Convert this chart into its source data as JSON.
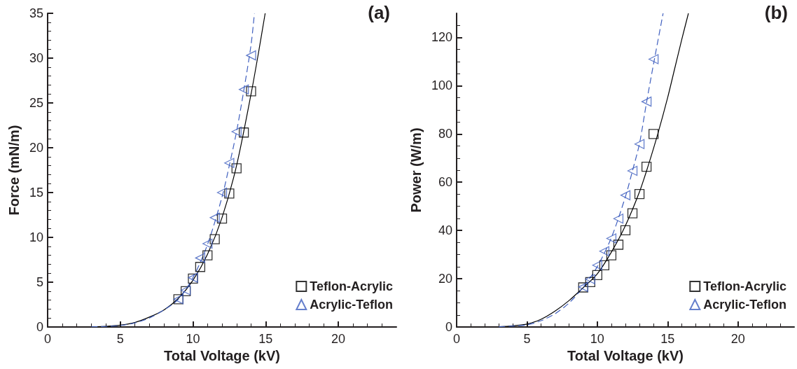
{
  "chart_data": [
    {
      "type": "scatter",
      "title": "(a)",
      "xlabel": "Total Voltage (kV)",
      "ylabel": "Force (mN/m)",
      "xlim": [
        0,
        24
      ],
      "xticks": [
        0,
        5,
        10,
        15,
        20
      ],
      "ylim": [
        0,
        35
      ],
      "yticks": [
        0,
        5,
        10,
        15,
        20,
        25,
        30,
        35
      ],
      "grid": false,
      "legend": "bottom right",
      "series": [
        {
          "name": "Teflon-Acrylic",
          "type": "scatter",
          "marker": "square",
          "color": "#000000",
          "x": [
            9,
            9.5,
            10,
            10.5,
            11,
            11.5,
            12,
            12.5,
            13,
            13.5,
            14
          ],
          "values": [
            3.1,
            4.0,
            5.4,
            6.7,
            8.0,
            9.8,
            12.1,
            14.9,
            17.7,
            21.7,
            26.3
          ]
        },
        {
          "name": "Acrylic-Teflon",
          "type": "scatter",
          "marker": "triangle",
          "color": "#3f5fbf",
          "x": [
            9,
            9.5,
            10,
            10.5,
            11,
            11.5,
            12,
            12.5,
            13,
            13.5,
            14
          ],
          "values": [
            3.1,
            4.1,
            5.5,
            7.7,
            9.3,
            12.2,
            15.0,
            18.3,
            21.8,
            26.5,
            30.3
          ]
        },
        {
          "type": "line",
          "marker": "none",
          "line_style": "solid",
          "color": "#000000",
          "x": [
            3,
            4,
            5,
            6,
            7,
            8,
            9,
            10,
            11,
            12,
            13,
            14,
            14.5,
            14.97
          ],
          "values": [
            0.02,
            0.07,
            0.2,
            0.5,
            1.1,
            1.9,
            3.2,
            5.2,
            8.1,
            12.2,
            18,
            26,
            30.5,
            35
          ]
        },
        {
          "type": "line",
          "marker": "none",
          "line_style": "dashed",
          "color": "#3f5fbf",
          "x": [
            3,
            4,
            5,
            6,
            7,
            8,
            9,
            10,
            11,
            12,
            12.5,
            13,
            13.5,
            14,
            14.23
          ],
          "values": [
            0.02,
            0.06,
            0.17,
            0.45,
            1.0,
            1.9,
            3.1,
            5.5,
            9.2,
            14.5,
            18,
            21.8,
            26.4,
            31.5,
            35
          ]
        }
      ]
    },
    {
      "type": "scatter",
      "title": "(b)",
      "xlabel": "Total Voltage (kV)",
      "ylabel": "Power (W/m)",
      "xlim": [
        0,
        24
      ],
      "xticks": [
        0,
        5,
        10,
        15,
        20
      ],
      "ylim": [
        0,
        130
      ],
      "yticks": [
        0,
        20,
        40,
        60,
        80,
        100,
        120
      ],
      "grid": false,
      "legend": "bottom right",
      "series": [
        {
          "name": "Teflon-Acrylic",
          "type": "scatter",
          "marker": "square",
          "color": "#000000",
          "x": [
            9,
            9.5,
            10,
            10.5,
            11,
            11.5,
            12,
            12.5,
            13,
            13.5,
            14
          ],
          "values": [
            16.4,
            18.6,
            21.5,
            25.6,
            29.7,
            34.1,
            40.1,
            47.1,
            55.1,
            66.4,
            80
          ]
        },
        {
          "name": "Acrylic-Teflon",
          "type": "scatter",
          "marker": "triangle",
          "color": "#3f5fbf",
          "x": [
            9,
            9.5,
            10,
            10.5,
            11,
            11.5,
            12,
            12.5,
            13,
            13.5,
            14
          ],
          "values": [
            16.6,
            19.8,
            25.6,
            31.4,
            36.7,
            44.9,
            54.6,
            64.7,
            75.8,
            93.4,
            111
          ]
        },
        {
          "type": "line",
          "marker": "none",
          "line_style": "solid",
          "color": "#000000",
          "x": [
            3,
            4,
            5,
            6,
            7,
            8,
            9,
            10,
            11,
            12,
            13,
            13.6,
            14.3,
            15,
            15.5,
            16,
            16.48
          ],
          "values": [
            0.1,
            0.5,
            1.2,
            3.2,
            6.6,
            11,
            16.3,
            22,
            31,
            42,
            56,
            66.5,
            80,
            95,
            107,
            119,
            130
          ]
        },
        {
          "type": "line",
          "marker": "none",
          "line_style": "dashed",
          "color": "#3f5fbf",
          "x": [
            3,
            4,
            5,
            6,
            7,
            8,
            9,
            10,
            11,
            12,
            12.5,
            13,
            13.5,
            14,
            14.68
          ],
          "values": [
            0.1,
            0.4,
            0.9,
            2.6,
            5.5,
            10,
            16.5,
            25,
            37,
            54,
            64.7,
            76,
            93,
            109,
            130
          ]
        }
      ]
    }
  ]
}
